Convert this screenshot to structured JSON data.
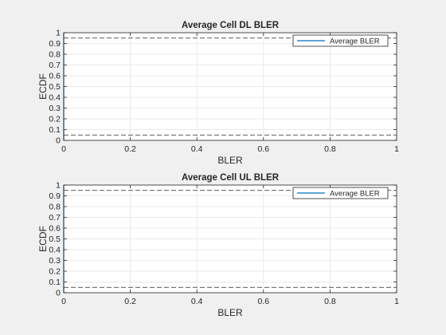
{
  "chart_data": [
    {
      "type": "line",
      "title": "Average Cell DL BLER",
      "xlabel": "BLER",
      "ylabel": "ECDF",
      "xlim": [
        0,
        1
      ],
      "ylim": [
        0,
        1
      ],
      "xticks": [
        0,
        0.2,
        0.4,
        0.6,
        0.8,
        1
      ],
      "xtick_labels": [
        "0",
        "0.2",
        "0.4",
        "0.6",
        "0.8",
        "1"
      ],
      "yticks": [
        0,
        0.1,
        0.2,
        0.3,
        0.4,
        0.5,
        0.6,
        0.7,
        0.8,
        0.9,
        1
      ],
      "ytick_labels": [
        "0",
        "0.1",
        "0.2",
        "0.3",
        "0.4",
        "0.5",
        "0.6",
        "0.7",
        "0.8",
        "0.9",
        "1"
      ],
      "grid": true,
      "legend_position": "top-right",
      "series": [
        {
          "name": "Average BLER",
          "color": "#0072bd",
          "x": [
            0,
            0
          ],
          "y": [
            0,
            1
          ]
        }
      ],
      "reference_lines": [
        {
          "style": "dashed",
          "color": "#262626",
          "y": 0.05
        },
        {
          "style": "dashed",
          "color": "#262626",
          "y": 0.95
        }
      ]
    },
    {
      "type": "line",
      "title": "Average Cell UL BLER",
      "xlabel": "BLER",
      "ylabel": "ECDF",
      "xlim": [
        0,
        1
      ],
      "ylim": [
        0,
        1
      ],
      "xticks": [
        0,
        0.2,
        0.4,
        0.6,
        0.8,
        1
      ],
      "xtick_labels": [
        "0",
        "0.2",
        "0.4",
        "0.6",
        "0.8",
        "1"
      ],
      "yticks": [
        0,
        0.1,
        0.2,
        0.3,
        0.4,
        0.5,
        0.6,
        0.7,
        0.8,
        0.9,
        1
      ],
      "ytick_labels": [
        "0",
        "0.1",
        "0.2",
        "0.3",
        "0.4",
        "0.5",
        "0.6",
        "0.7",
        "0.8",
        "0.9",
        "1"
      ],
      "grid": true,
      "legend_position": "top-right",
      "series": [
        {
          "name": "Average BLER",
          "color": "#0072bd",
          "x": [
            0,
            0
          ],
          "y": [
            0,
            1
          ]
        }
      ],
      "reference_lines": [
        {
          "style": "dashed",
          "color": "#262626",
          "y": 0.05
        },
        {
          "style": "dashed",
          "color": "#262626",
          "y": 0.95
        }
      ]
    }
  ]
}
